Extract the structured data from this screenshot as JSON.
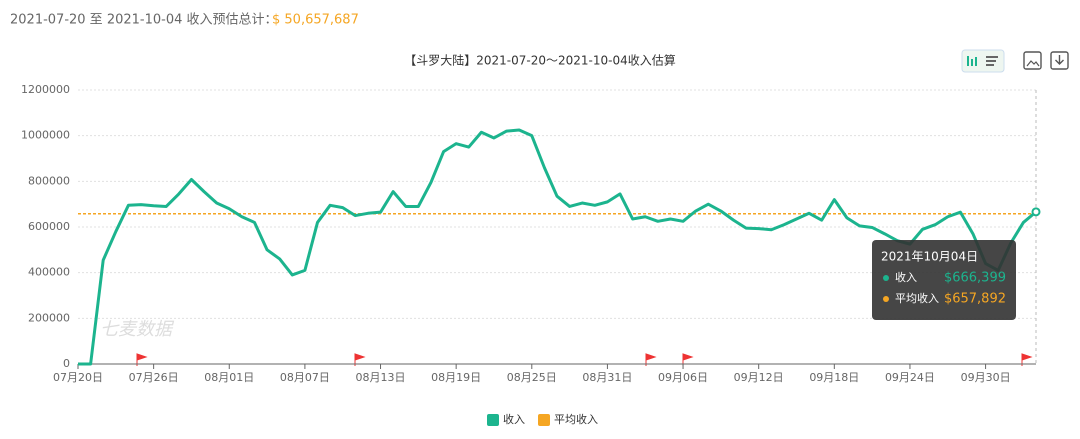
{
  "header": {
    "range_text": "2021-07-20 至 2021-10-04 收入预估总计：",
    "total": "$ 50,657,687"
  },
  "chart_data": {
    "type": "line",
    "title": "【斗罗大陆】2021-07-20～2021-10-04收入估算",
    "watermark": "七麦数据",
    "categories": [
      "07月20日",
      null,
      null,
      null,
      null,
      null,
      "07月26日",
      null,
      null,
      null,
      null,
      null,
      "08月01日",
      null,
      null,
      null,
      null,
      null,
      "08月07日",
      null,
      null,
      null,
      null,
      null,
      "08月13日",
      null,
      null,
      null,
      null,
      null,
      "08月19日",
      null,
      null,
      null,
      null,
      null,
      "08月25日",
      null,
      null,
      null,
      null,
      null,
      "08月31日",
      null,
      null,
      null,
      null,
      null,
      "09月06日",
      null,
      null,
      null,
      null,
      null,
      "09月12日",
      null,
      null,
      null,
      null,
      null,
      "09月18日",
      null,
      null,
      null,
      null,
      null,
      "09月24日",
      null,
      null,
      null,
      null,
      null,
      "09月30日",
      null,
      null,
      null,
      null
    ],
    "series": [
      {
        "name": "收入",
        "color": "#1cb48e",
        "values": [
          0,
          0,
          455000,
          580000,
          695000,
          698000,
          693000,
          690000,
          745000,
          808000,
          755000,
          705000,
          680000,
          645000,
          620000,
          500000,
          460000,
          390000,
          410000,
          620000,
          695000,
          685000,
          650000,
          660000,
          665000,
          755000,
          690000,
          690000,
          795000,
          930000,
          965000,
          950000,
          1015000,
          990000,
          1020000,
          1025000,
          1000000,
          860000,
          735000,
          690000,
          705000,
          695000,
          710000,
          745000,
          635000,
          645000,
          625000,
          635000,
          625000,
          670000,
          700000,
          670000,
          630000,
          595000,
          593000,
          588000,
          610000,
          635000,
          660000,
          630000,
          720000,
          640000,
          605000,
          598000,
          570000,
          540000,
          525000,
          590000,
          610000,
          645000,
          665000,
          570000,
          440000,
          410000,
          530000,
          620000,
          666399
        ]
      },
      {
        "name": "平均收入",
        "color": "#f5a623",
        "value": 657892
      }
    ],
    "ylim": [
      0,
      1200000
    ],
    "yticks": [
      0,
      200000,
      400000,
      600000,
      800000,
      1000000,
      1200000
    ],
    "grid": true,
    "tooltip": {
      "title": "2021年10月04日",
      "value_labels": [
        "$666,399",
        "$657,892"
      ]
    }
  }
}
